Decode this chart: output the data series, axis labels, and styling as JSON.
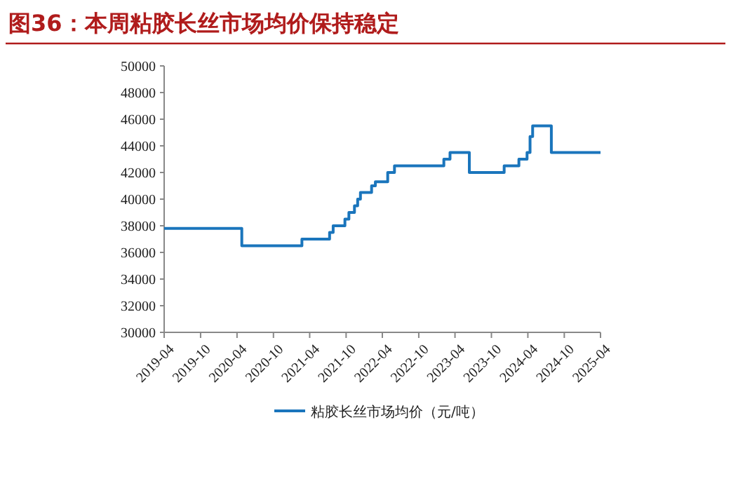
{
  "chart_data": {
    "type": "step",
    "title": "图36：本周粘胶长丝市场均价保持稳定",
    "x": [
      "2019-04-01",
      "2020-04-25",
      "2021-02-21",
      "2021-07-10",
      "2021-07-28",
      "2021-09-25",
      "2021-10-15",
      "2021-11-12",
      "2021-11-28",
      "2021-12-12",
      "2022-02-06",
      "2022-02-25",
      "2022-04-28",
      "2022-06-01",
      "2023-02-04",
      "2023-03-07",
      "2023-06-12",
      "2023-12-04",
      "2024-02-16",
      "2024-03-28",
      "2024-04-12",
      "2024-04-25",
      "2024-07-28",
      "2025-04-01"
    ],
    "series": [
      {
        "name": "粘胶长丝市场均价（元/吨）",
        "color": "#1a75bc",
        "values": [
          37800,
          36500,
          37000,
          37500,
          38000,
          38500,
          39000,
          39500,
          40000,
          40500,
          41000,
          41300,
          42000,
          42500,
          43000,
          43500,
          42000,
          42500,
          43000,
          43500,
          44700,
          45500,
          43500,
          43500
        ]
      }
    ],
    "xlim": [
      "2019-04",
      "2025-04"
    ],
    "ylim": [
      30000,
      50000
    ],
    "xticks": [
      {
        "value": "2019-04",
        "label": "2019-04"
      },
      {
        "value": "2019-10",
        "label": "2019-10"
      },
      {
        "value": "2020-04",
        "label": "2020-04"
      },
      {
        "value": "2020-10",
        "label": "2020-10"
      },
      {
        "value": "2021-04",
        "label": "2021-04"
      },
      {
        "value": "2021-10",
        "label": "2021-10"
      },
      {
        "value": "2022-04",
        "label": "2022-04"
      },
      {
        "value": "2022-10",
        "label": "2022-10"
      },
      {
        "value": "2023-04",
        "label": "2023-04"
      },
      {
        "value": "2023-10",
        "label": "2023-10"
      },
      {
        "value": "2024-04",
        "label": "2024-04"
      },
      {
        "value": "2024-10",
        "label": "2024-10"
      },
      {
        "value": "2025-04",
        "label": "2025-04"
      }
    ],
    "yticks": [
      30000,
      32000,
      34000,
      36000,
      38000,
      40000,
      42000,
      44000,
      46000,
      48000,
      50000
    ],
    "legend": "bottom"
  }
}
